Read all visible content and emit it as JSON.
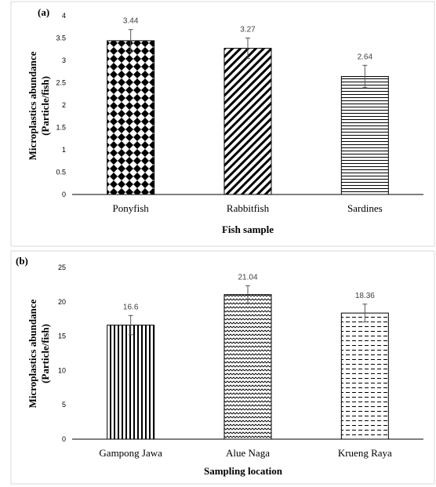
{
  "chart_data": [
    {
      "panel_label": "(a)",
      "type": "bar",
      "categories": [
        "Ponyfish",
        "Rabbitfish",
        "Sardines"
      ],
      "values": [
        3.44,
        3.27,
        2.64
      ],
      "data_labels": [
        "3.44",
        "3.27",
        "2.64"
      ],
      "error": [
        0.25,
        0.23,
        0.25
      ],
      "fills": [
        "diamond-checker",
        "diagonal-stripes",
        "horizontal-lines"
      ],
      "xlabel": "Fish sample",
      "ylabel": "Microplastics abundance (Particle/fish)",
      "ylabel_lines": [
        "Microplastics abundance",
        "(Particle/fish)"
      ],
      "ylim": [
        0,
        4
      ],
      "yticks": [
        "0",
        "0.5",
        "1",
        "1.5",
        "2",
        "2.5",
        "3",
        "3.5",
        "4"
      ],
      "grid": false
    },
    {
      "panel_label": "(b)",
      "type": "bar",
      "categories": [
        "Gampong Jawa",
        "Alue Naga",
        "Krueng Raya"
      ],
      "values": [
        16.6,
        21.04,
        18.36
      ],
      "data_labels": [
        "16.6",
        "21.04",
        "18.36"
      ],
      "error": [
        1.4,
        1.3,
        1.3
      ],
      "fills": [
        "vertical-lines",
        "wave",
        "dashed-horizontal"
      ],
      "xlabel": "Sampling location",
      "ylabel": "Microplastics abundance (Particle/fish)",
      "ylabel_lines": [
        "Microplastics abundance",
        "(Particle/fish)"
      ],
      "ylim": [
        0,
        25
      ],
      "yticks": [
        "0",
        "5",
        "10",
        "15",
        "20",
        "25"
      ],
      "grid": false
    }
  ]
}
